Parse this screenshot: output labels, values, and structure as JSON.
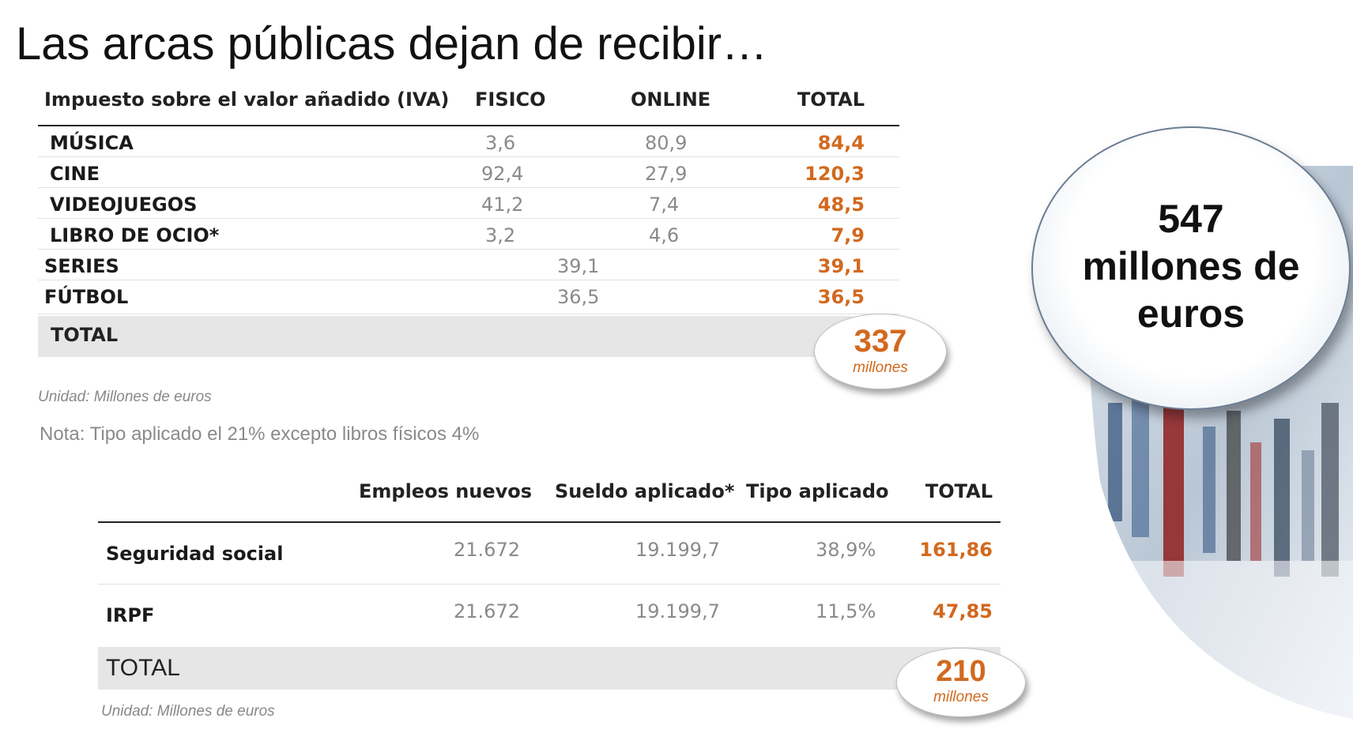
{
  "title": "Las arcas públicas dejan de recibir…",
  "iva_table": {
    "headers": [
      "Impuesto sobre el valor añadido (IVA)",
      "FISICO",
      "ONLINE",
      "TOTAL"
    ],
    "rows": [
      {
        "label": "MÚSICA",
        "fisico": "3,6",
        "online": "80,9",
        "total": "84,4"
      },
      {
        "label": "CINE",
        "fisico": "92,4",
        "online": "27,9",
        "total": "120,3"
      },
      {
        "label": "VIDEOJUEGOS",
        "fisico": "41,2",
        "online": "7,4",
        "total": "48,5"
      },
      {
        "label": "LIBRO DE OCIO*",
        "fisico": "3,2",
        "online": "4,6",
        "total": "7,9"
      },
      {
        "label": "SERIES",
        "combined": "39,1",
        "total": "39,1"
      },
      {
        "label": "FÚTBOL",
        "combined": "36,5",
        "total": "36,5"
      }
    ],
    "total_label": "TOTAL",
    "total_value": "337",
    "total_unit": "millones",
    "unit_note": "Unidad: Millones de euros",
    "note": "Nota: Tipo aplicado el 21% excepto libros físicos 4%"
  },
  "ss_table": {
    "headers": [
      "Empleos nuevos",
      "Sueldo aplicado*",
      "Tipo aplicado",
      "TOTAL"
    ],
    "rows": [
      {
        "label": "Seguridad social",
        "empleos": "21.672",
        "sueldo": "19.199,7",
        "tipo": "38,9%",
        "total": "161,86"
      },
      {
        "label": "IRPF",
        "empleos": "21.672",
        "sueldo": "19.199,7",
        "tipo": "11,5%",
        "total": "47,85"
      }
    ],
    "total_label": "TOTAL",
    "total_value": "210",
    "total_unit": "millones",
    "unit_note": "Unidad: Millones de euros"
  },
  "summary": {
    "value": "547",
    "line2": "millones de",
    "line3": "euros"
  },
  "colors": {
    "accent": "#d2691e",
    "muted": "#8a8a8a",
    "band": "#e6e6e6"
  }
}
